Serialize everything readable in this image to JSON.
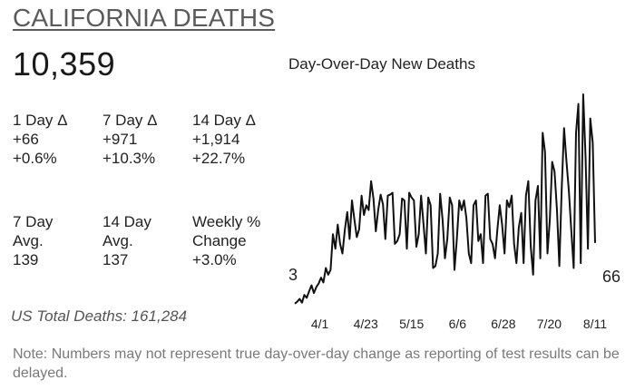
{
  "header": {
    "title": "CALIFORNIA DEATHS",
    "total": "10,359"
  },
  "stats": {
    "row1": [
      {
        "label": "1 Day Δ",
        "value": "+66",
        "pct": "+0.6%"
      },
      {
        "label": "7 Day Δ",
        "value": "+971",
        "pct": "+10.3%"
      },
      {
        "label": "14 Day Δ",
        "value": "+1,914",
        "pct": "+22.7%"
      }
    ],
    "row2": [
      {
        "label1": "7 Day",
        "label2": "Avg.",
        "value": "139"
      },
      {
        "label1": "14 Day",
        "label2": "Avg.",
        "value": "137"
      },
      {
        "label1": "Weekly %",
        "label2": "Change",
        "value": "+3.0%"
      }
    ]
  },
  "us_total": "US Total Deaths: 161,284",
  "note": "Note: Numbers may not represent true day-over-day change as reporting of test results can be delayed.",
  "colors": {
    "line": "#111111",
    "title": "#5b5b5b",
    "note": "#7a7a7a"
  },
  "chart_data": {
    "type": "line",
    "title": "Day-Over-Day New Deaths",
    "start_date": "2020-03-20",
    "end_date": "2020-08-11",
    "x_tick_labels": [
      "4/1",
      "4/23",
      "5/15",
      "6/6",
      "6/28",
      "7/20",
      "8/11"
    ],
    "x_tick_dates": [
      "2020-04-01",
      "2020-04-23",
      "2020-05-15",
      "2020-06-06",
      "2020-06-28",
      "2020-07-20",
      "2020-08-11"
    ],
    "start_label": "3",
    "end_label": "66",
    "ylim": [
      0,
      220
    ],
    "grid": false,
    "series": [
      {
        "values": [
          3,
          5,
          8,
          4,
          12,
          9,
          16,
          22,
          14,
          20,
          24,
          30,
          25,
          40,
          33,
          38,
          75,
          60,
          85,
          65,
          55,
          80,
          98,
          70,
          110,
          90,
          72,
          80,
          115,
          95,
          105,
          100,
          130,
          112,
          78,
          100,
          116,
          106,
          70,
          115,
          116,
          118,
          65,
          68,
          75,
          112,
          110,
          60,
          118,
          113,
          110,
          62,
          75,
          115,
          85,
          55,
          113,
          105,
          40,
          42,
          55,
          117,
          90,
          50,
          70,
          113,
          105,
          38,
          70,
          110,
          100,
          110,
          92,
          55,
          45,
          105,
          110,
          68,
          75,
          45,
          115,
          117,
          70,
          65,
          50,
          80,
          105,
          85,
          55,
          110,
          103,
          115,
          65,
          45,
          82,
          97,
          45,
          115,
          130,
          62,
          33,
          110,
          125,
          50,
          180,
          160,
          55,
          90,
          150,
          140,
          100,
          42,
          122,
          185,
          150,
          120,
          80,
          40,
          180,
          210,
          45,
          220,
          155,
          60,
          195,
          170,
          66
        ]
      }
    ]
  }
}
